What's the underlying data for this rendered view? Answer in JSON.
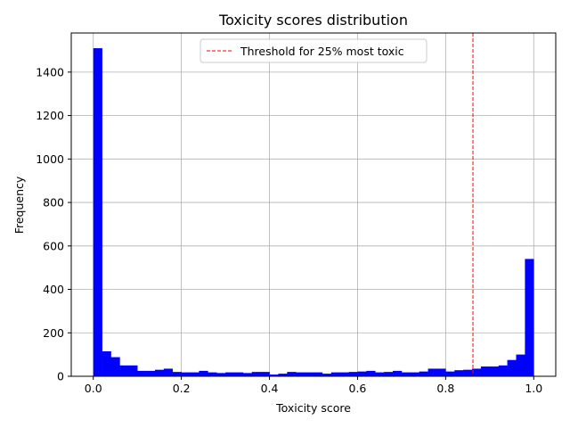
{
  "chart_data": {
    "type": "bar",
    "title": "Toxicity scores distribution",
    "xlabel": "Toxicity score",
    "ylabel": "Frequency",
    "xlim": [
      -0.05,
      1.05
    ],
    "ylim": [
      0,
      1580
    ],
    "xticks": [
      0.0,
      0.2,
      0.4,
      0.6,
      0.8,
      1.0
    ],
    "xtick_labels": [
      "0.0",
      "0.2",
      "0.4",
      "0.6",
      "0.8",
      "1.0"
    ],
    "yticks": [
      0,
      200,
      400,
      600,
      800,
      1000,
      1200,
      1400
    ],
    "ytick_labels": [
      "0",
      "200",
      "400",
      "600",
      "800",
      "1000",
      "1200",
      "1400"
    ],
    "grid": true,
    "bar_color": "#0000ff",
    "bin_width": 0.02,
    "bin_start": 0.0,
    "values": [
      1510,
      115,
      88,
      50,
      50,
      25,
      25,
      30,
      35,
      20,
      18,
      18,
      25,
      18,
      15,
      18,
      18,
      15,
      20,
      20,
      8,
      12,
      20,
      18,
      18,
      18,
      12,
      18,
      18,
      20,
      22,
      25,
      18,
      20,
      25,
      18,
      18,
      22,
      35,
      35,
      22,
      28,
      30,
      35,
      45,
      45,
      50,
      75,
      100,
      540
    ],
    "threshold": {
      "x": 0.862,
      "color": "#ff0000",
      "label": "Threshold for 25% most toxic"
    },
    "legend_position": "top-center"
  }
}
